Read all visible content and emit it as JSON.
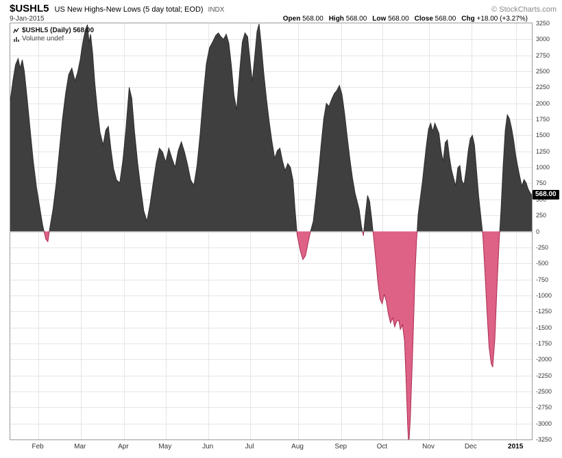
{
  "header": {
    "symbol": "$USHL5",
    "title": "US New Highs-New Lows (5 day total; EOD)",
    "exchange": "INDX",
    "date": "9-Jan-2015",
    "copyright": "© StockCharts.com",
    "quote": [
      {
        "label": "Open",
        "value": "568.00"
      },
      {
        "label": "High",
        "value": "568.00"
      },
      {
        "label": "Low",
        "value": "568.00"
      },
      {
        "label": "Close",
        "value": "568.00"
      },
      {
        "label": "Chg",
        "value": "+18.00 (+3.27%)"
      }
    ]
  },
  "legend": {
    "series_label": "$USHL5 (Daily) 568.00",
    "volume_label": "Volume undef"
  },
  "value_badge": "568.00",
  "colors": {
    "area_pos": "#3f3f3f",
    "line_pos": "#2e2e2e",
    "area_neg": "#dd6285",
    "line_neg": "#aa2c52",
    "grid": "#e5e5e5",
    "grid_zero": "#cccccc",
    "border": "#999999",
    "badge_bg": "#000000",
    "badge_fg": "#ffffff"
  },
  "chart_data": {
    "type": "area",
    "title": "$USHL5 US New Highs-New Lows (5 day total; EOD) Daily",
    "xlabel": "",
    "ylabel": "",
    "ylim": [
      -3250,
      3250
    ],
    "grid": true,
    "baseline": 0,
    "last_value": 568,
    "y_ticks": [
      3250,
      3000,
      2750,
      2500,
      2250,
      2000,
      1750,
      1500,
      1250,
      1000,
      750,
      500,
      250,
      0,
      -250,
      -500,
      -750,
      -1000,
      -1250,
      -1500,
      -1750,
      -2000,
      -2250,
      -2500,
      -2750,
      -3000,
      -3250
    ],
    "x_ticks": [
      {
        "label": "Feb",
        "f": 0.054
      },
      {
        "label": "Mar",
        "f": 0.135
      },
      {
        "label": "Apr",
        "f": 0.218
      },
      {
        "label": "May",
        "f": 0.298
      },
      {
        "label": "Jun",
        "f": 0.38
      },
      {
        "label": "Jul",
        "f": 0.46
      },
      {
        "label": "Aug",
        "f": 0.552
      },
      {
        "label": "Sep",
        "f": 0.635
      },
      {
        "label": "Oct",
        "f": 0.714
      },
      {
        "label": "Nov",
        "f": 0.803
      },
      {
        "label": "Dec",
        "f": 0.884
      },
      {
        "label": "2015",
        "f": 0.97,
        "bold": true
      }
    ],
    "points": [
      [
        0.0,
        2050
      ],
      [
        0.005,
        2350
      ],
      [
        0.01,
        2600
      ],
      [
        0.015,
        2700
      ],
      [
        0.019,
        2550
      ],
      [
        0.023,
        2680
      ],
      [
        0.027,
        2500
      ],
      [
        0.032,
        2100
      ],
      [
        0.038,
        1600
      ],
      [
        0.044,
        1100
      ],
      [
        0.05,
        700
      ],
      [
        0.056,
        400
      ],
      [
        0.062,
        100
      ],
      [
        0.068,
        -120
      ],
      [
        0.072,
        -160
      ],
      [
        0.076,
        60
      ],
      [
        0.082,
        350
      ],
      [
        0.088,
        750
      ],
      [
        0.094,
        1250
      ],
      [
        0.1,
        1750
      ],
      [
        0.106,
        2150
      ],
      [
        0.112,
        2450
      ],
      [
        0.118,
        2550
      ],
      [
        0.124,
        2350
      ],
      [
        0.129,
        2480
      ],
      [
        0.134,
        2680
      ],
      [
        0.139,
        2950
      ],
      [
        0.144,
        3150
      ],
      [
        0.148,
        3230
      ],
      [
        0.151,
        2950
      ],
      [
        0.154,
        3080
      ],
      [
        0.158,
        2780
      ],
      [
        0.162,
        2320
      ],
      [
        0.167,
        1900
      ],
      [
        0.172,
        1550
      ],
      [
        0.178,
        1350
      ],
      [
        0.183,
        1580
      ],
      [
        0.188,
        1640
      ],
      [
        0.193,
        1280
      ],
      [
        0.198,
        980
      ],
      [
        0.204,
        800
      ],
      [
        0.21,
        760
      ],
      [
        0.216,
        1120
      ],
      [
        0.222,
        1620
      ],
      [
        0.228,
        2250
      ],
      [
        0.233,
        2080
      ],
      [
        0.238,
        1580
      ],
      [
        0.244,
        1080
      ],
      [
        0.25,
        680
      ],
      [
        0.256,
        320
      ],
      [
        0.262,
        160
      ],
      [
        0.268,
        420
      ],
      [
        0.274,
        760
      ],
      [
        0.28,
        1080
      ],
      [
        0.286,
        1300
      ],
      [
        0.292,
        1240
      ],
      [
        0.298,
        1080
      ],
      [
        0.304,
        1300
      ],
      [
        0.31,
        1140
      ],
      [
        0.316,
        1000
      ],
      [
        0.322,
        1260
      ],
      [
        0.328,
        1400
      ],
      [
        0.334,
        1240
      ],
      [
        0.34,
        1040
      ],
      [
        0.346,
        800
      ],
      [
        0.352,
        720
      ],
      [
        0.358,
        1020
      ],
      [
        0.364,
        1520
      ],
      [
        0.37,
        2120
      ],
      [
        0.376,
        2620
      ],
      [
        0.382,
        2870
      ],
      [
        0.388,
        2960
      ],
      [
        0.394,
        3060
      ],
      [
        0.399,
        3100
      ],
      [
        0.404,
        3040
      ],
      [
        0.409,
        3000
      ],
      [
        0.414,
        3080
      ],
      [
        0.419,
        2940
      ],
      [
        0.424,
        2580
      ],
      [
        0.429,
        2120
      ],
      [
        0.434,
        1900
      ],
      [
        0.44,
        2520
      ],
      [
        0.445,
        2960
      ],
      [
        0.45,
        3100
      ],
      [
        0.455,
        3040
      ],
      [
        0.46,
        2640
      ],
      [
        0.464,
        2340
      ],
      [
        0.469,
        2760
      ],
      [
        0.473,
        3120
      ],
      [
        0.477,
        3240
      ],
      [
        0.481,
        2940
      ],
      [
        0.486,
        2480
      ],
      [
        0.491,
        2080
      ],
      [
        0.496,
        1740
      ],
      [
        0.501,
        1440
      ],
      [
        0.507,
        1140
      ],
      [
        0.512,
        1260
      ],
      [
        0.517,
        1300
      ],
      [
        0.522,
        1100
      ],
      [
        0.527,
        950
      ],
      [
        0.532,
        1060
      ],
      [
        0.537,
        1000
      ],
      [
        0.542,
        800
      ],
      [
        0.546,
        340
      ],
      [
        0.55,
        -60
      ],
      [
        0.556,
        -300
      ],
      [
        0.561,
        -440
      ],
      [
        0.566,
        -380
      ],
      [
        0.571,
        -180
      ],
      [
        0.576,
        10
      ],
      [
        0.581,
        160
      ],
      [
        0.586,
        520
      ],
      [
        0.591,
        920
      ],
      [
        0.596,
        1360
      ],
      [
        0.601,
        1760
      ],
      [
        0.606,
        2000
      ],
      [
        0.611,
        1950
      ],
      [
        0.616,
        2060
      ],
      [
        0.621,
        2150
      ],
      [
        0.626,
        2200
      ],
      [
        0.631,
        2280
      ],
      [
        0.636,
        2140
      ],
      [
        0.641,
        1840
      ],
      [
        0.646,
        1480
      ],
      [
        0.651,
        1140
      ],
      [
        0.656,
        840
      ],
      [
        0.661,
        600
      ],
      [
        0.665,
        470
      ],
      [
        0.669,
        340
      ],
      [
        0.673,
        90
      ],
      [
        0.677,
        -70
      ],
      [
        0.681,
        260
      ],
      [
        0.685,
        560
      ],
      [
        0.689,
        470
      ],
      [
        0.693,
        190
      ],
      [
        0.697,
        -120
      ],
      [
        0.701,
        -460
      ],
      [
        0.705,
        -810
      ],
      [
        0.709,
        -1060
      ],
      [
        0.713,
        -1130
      ],
      [
        0.717,
        -980
      ],
      [
        0.721,
        -1090
      ],
      [
        0.725,
        -1290
      ],
      [
        0.729,
        -1430
      ],
      [
        0.733,
        -1350
      ],
      [
        0.737,
        -1490
      ],
      [
        0.741,
        -1400
      ],
      [
        0.745,
        -1390
      ],
      [
        0.748,
        -1530
      ],
      [
        0.752,
        -1460
      ],
      [
        0.756,
        -1720
      ],
      [
        0.759,
        -2350
      ],
      [
        0.762,
        -3050
      ],
      [
        0.764,
        -3350
      ],
      [
        0.767,
        -2920
      ],
      [
        0.77,
        -2220
      ],
      [
        0.773,
        -1480
      ],
      [
        0.776,
        -680
      ],
      [
        0.779,
        -140
      ],
      [
        0.782,
        260
      ],
      [
        0.786,
        510
      ],
      [
        0.79,
        760
      ],
      [
        0.794,
        1060
      ],
      [
        0.798,
        1360
      ],
      [
        0.802,
        1600
      ],
      [
        0.806,
        1690
      ],
      [
        0.81,
        1560
      ],
      [
        0.814,
        1690
      ],
      [
        0.818,
        1610
      ],
      [
        0.822,
        1530
      ],
      [
        0.826,
        1260
      ],
      [
        0.83,
        1090
      ],
      [
        0.834,
        1390
      ],
      [
        0.838,
        1430
      ],
      [
        0.842,
        1160
      ],
      [
        0.846,
        960
      ],
      [
        0.85,
        830
      ],
      [
        0.854,
        710
      ],
      [
        0.858,
        990
      ],
      [
        0.862,
        1030
      ],
      [
        0.866,
        790
      ],
      [
        0.87,
        730
      ],
      [
        0.874,
        960
      ],
      [
        0.878,
        1260
      ],
      [
        0.882,
        1450
      ],
      [
        0.886,
        1500
      ],
      [
        0.89,
        1350
      ],
      [
        0.894,
        950
      ],
      [
        0.898,
        550
      ],
      [
        0.902,
        250
      ],
      [
        0.906,
        -60
      ],
      [
        0.91,
        -620
      ],
      [
        0.914,
        -1260
      ],
      [
        0.918,
        -1810
      ],
      [
        0.922,
        -2060
      ],
      [
        0.925,
        -2120
      ],
      [
        0.929,
        -1690
      ],
      [
        0.933,
        -900
      ],
      [
        0.937,
        -190
      ],
      [
        0.941,
        360
      ],
      [
        0.945,
        1020
      ],
      [
        0.949,
        1580
      ],
      [
        0.953,
        1820
      ],
      [
        0.957,
        1760
      ],
      [
        0.961,
        1620
      ],
      [
        0.965,
        1430
      ],
      [
        0.969,
        1190
      ],
      [
        0.973,
        1010
      ],
      [
        0.977,
        850
      ],
      [
        0.981,
        710
      ],
      [
        0.985,
        810
      ],
      [
        0.989,
        760
      ],
      [
        0.993,
        660
      ],
      [
        0.997,
        600
      ],
      [
        1.0,
        568
      ]
    ]
  }
}
